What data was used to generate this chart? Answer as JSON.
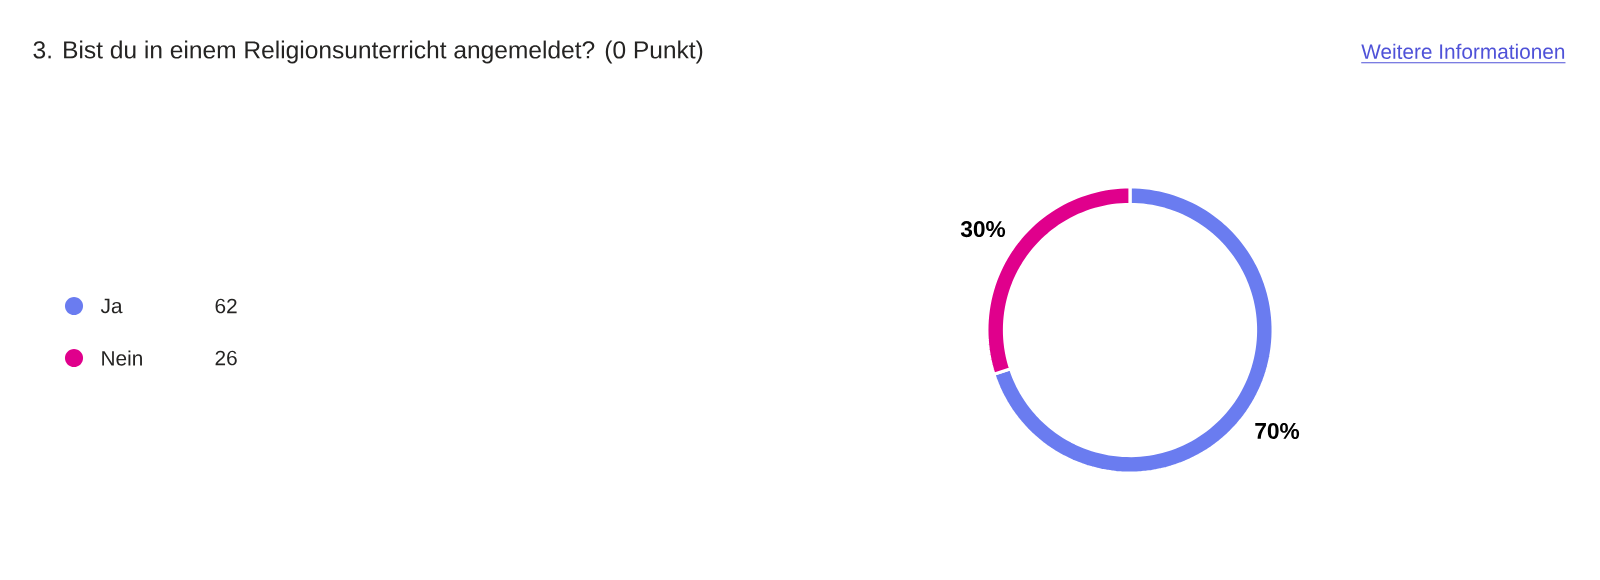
{
  "chart_data": {
    "type": "donut",
    "title": "3. Bist du in einem Religionsunterricht angemeldet? (0 Punkt)",
    "categories": [
      "Ja",
      "Nein"
    ],
    "values": [
      70,
      30
    ],
    "colors": [
      "#6a7cf0",
      "#e0008c"
    ],
    "value_labels": [
      "70%",
      "30%"
    ],
    "legend": "left",
    "annotations": [
      "Weitere Informationen",
      "62",
      "26"
    ]
  }
}
